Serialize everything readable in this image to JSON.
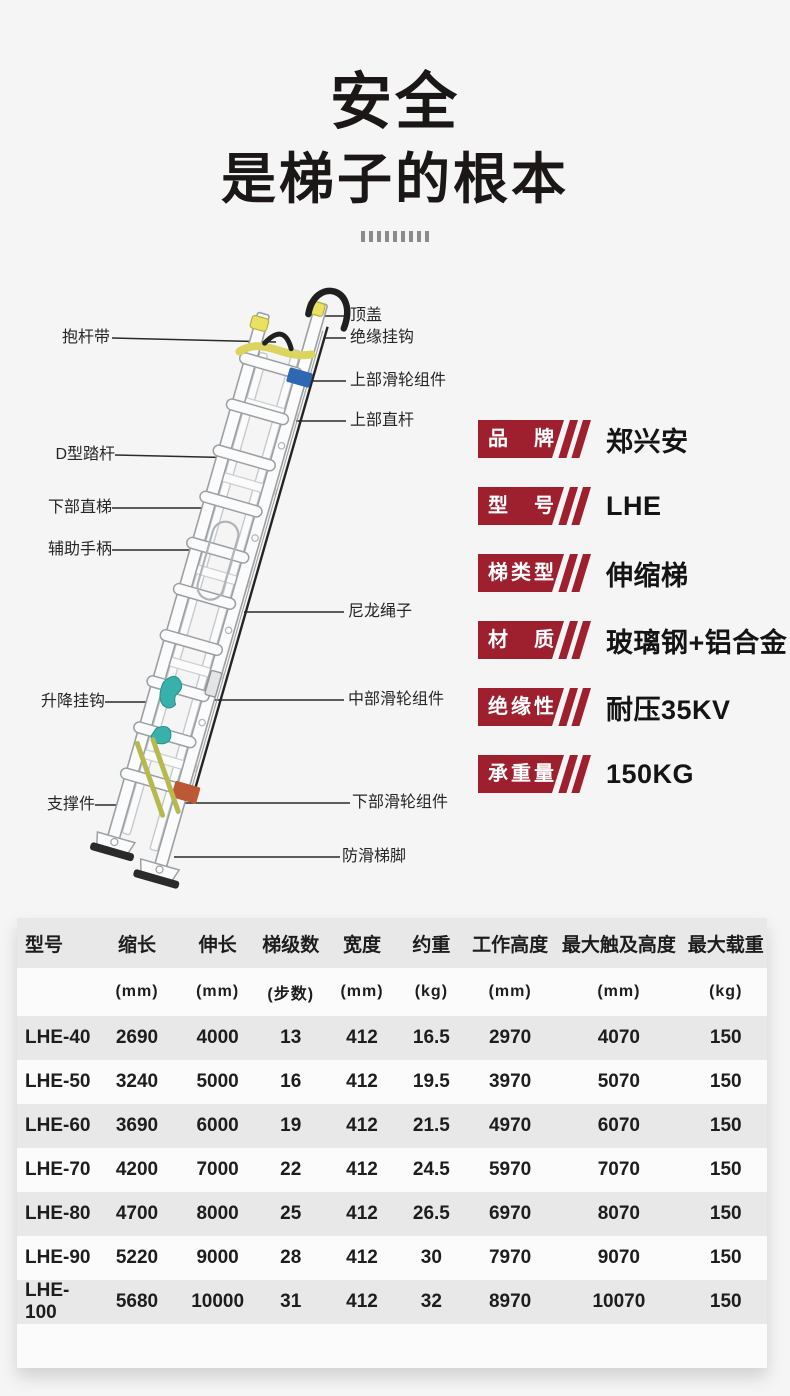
{
  "header": {
    "title_line1": "安全",
    "title_line2": "是梯子的根本"
  },
  "decoration": {
    "tick_count": 9
  },
  "diagram": {
    "labels_left": [
      {
        "text": "抱杆带"
      },
      {
        "text": "D型踏杆"
      },
      {
        "text": "下部直梯"
      },
      {
        "text": "辅助手柄"
      },
      {
        "text": "升降挂钩"
      },
      {
        "text": "支撑件"
      }
    ],
    "labels_right": [
      {
        "text": "顶盖"
      },
      {
        "text": "绝缘挂钩"
      },
      {
        "text": "上部滑轮组件"
      },
      {
        "text": "上部直杆"
      },
      {
        "text": "尼龙绳子"
      },
      {
        "text": "中部滑轮组件"
      },
      {
        "text": "下部滑轮组件"
      },
      {
        "text": "防滑梯脚"
      }
    ]
  },
  "specs": {
    "accent_color": "#9e1f2d",
    "items": [
      {
        "label": "品牌",
        "value": "郑兴安"
      },
      {
        "label": "型号",
        "value": "LHE"
      },
      {
        "label": "梯类型",
        "value": "伸缩梯"
      },
      {
        "label": "材质",
        "value": "玻璃钢+铝合金"
      },
      {
        "label": "绝缘性",
        "value": "耐压35KV"
      },
      {
        "label": "承重量",
        "value": "150KG"
      }
    ]
  },
  "table": {
    "columns": [
      {
        "label": "型号",
        "unit": ""
      },
      {
        "label": "缩长",
        "unit": "(mm)"
      },
      {
        "label": "伸长",
        "unit": "(mm)"
      },
      {
        "label": "梯级数",
        "unit": "(步数)"
      },
      {
        "label": "宽度",
        "unit": "(mm)"
      },
      {
        "label": "约重",
        "unit": "(kg)"
      },
      {
        "label": "工作高度",
        "unit": "(mm)"
      },
      {
        "label": "最大触及高度",
        "unit": "(mm)"
      },
      {
        "label": "最大载重",
        "unit": "(kg)"
      }
    ],
    "rows": [
      [
        "LHE-40",
        "2690",
        "4000",
        "13",
        "412",
        "16.5",
        "2970",
        "4070",
        "150"
      ],
      [
        "LHE-50",
        "3240",
        "5000",
        "16",
        "412",
        "19.5",
        "3970",
        "5070",
        "150"
      ],
      [
        "LHE-60",
        "3690",
        "6000",
        "19",
        "412",
        "21.5",
        "4970",
        "6070",
        "150"
      ],
      [
        "LHE-70",
        "4200",
        "7000",
        "22",
        "412",
        "24.5",
        "5970",
        "7070",
        "150"
      ],
      [
        "LHE-80",
        "4700",
        "8000",
        "25",
        "412",
        "26.5",
        "6970",
        "8070",
        "150"
      ],
      [
        "LHE-90",
        "5220",
        "9000",
        "28",
        "412",
        "30",
        "7970",
        "9070",
        "150"
      ],
      [
        "LHE-100",
        "5680",
        "10000",
        "31",
        "412",
        "32",
        "8970",
        "10070",
        "150"
      ]
    ]
  }
}
